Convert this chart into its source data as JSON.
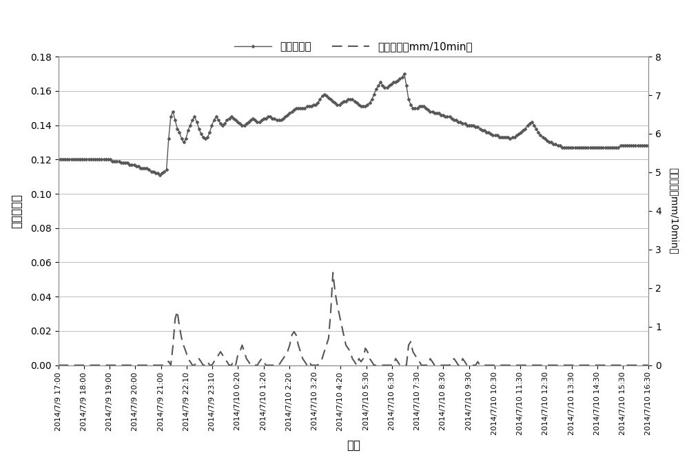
{
  "xlabel": "时间",
  "ylabel_left": "体积含水量",
  "ylabel_right": "降雨强度（mm/10min）",
  "legend_vwc": "体积含水量",
  "legend_rain": "降雨强度（mm/10min）",
  "ylim_left": [
    0,
    0.18
  ],
  "ylim_right": [
    0,
    8
  ],
  "yticks_left": [
    0,
    0.02,
    0.04,
    0.06,
    0.08,
    0.1,
    0.12,
    0.14,
    0.16,
    0.18
  ],
  "yticks_right": [
    0,
    1,
    2,
    3,
    4,
    5,
    6,
    7,
    8
  ],
  "line_color": "#555555",
  "dash_color": "#555555",
  "background": "#ffffff",
  "grid_color": "#bbbbbb",
  "xtick_labels": [
    "2014/7/9 17:00",
    "2014/7/9 18:00",
    "2014/7/9 19:00",
    "2014/7/9 20:00",
    "2014/7/9 21:00",
    "2014/7/9 22:10",
    "2014/7/9 23:10",
    "2014/7/10 0:20",
    "2014/7/10 1:20",
    "2014/7/10 2:20",
    "2014/7/10 3:20",
    "2014/7/10 4:20",
    "2014/7/10 5:30",
    "2014/7/10 6:30",
    "2014/7/10 7:30",
    "2014/7/10 8:30",
    "2014/7/10 9:30",
    "2014/7/10 10:30",
    "2014/7/10 11:30",
    "2014/7/10 12:30",
    "2014/7/10 13:30",
    "2014/7/10 14:30",
    "2014/7/10 15:30",
    "2014/7/10 16:30"
  ],
  "vwc_y": [
    0.12,
    0.12,
    0.12,
    0.12,
    0.12,
    0.12,
    0.12,
    0.12,
    0.12,
    0.12,
    0.12,
    0.12,
    0.12,
    0.12,
    0.12,
    0.12,
    0.12,
    0.12,
    0.12,
    0.12,
    0.12,
    0.12,
    0.12,
    0.12,
    0.12,
    0.119,
    0.119,
    0.119,
    0.119,
    0.118,
    0.118,
    0.118,
    0.118,
    0.117,
    0.117,
    0.117,
    0.116,
    0.116,
    0.115,
    0.115,
    0.115,
    0.115,
    0.114,
    0.113,
    0.113,
    0.112,
    0.112,
    0.111,
    0.112,
    0.113,
    0.114,
    0.132,
    0.145,
    0.148,
    0.143,
    0.138,
    0.136,
    0.132,
    0.13,
    0.132,
    0.137,
    0.14,
    0.143,
    0.145,
    0.142,
    0.138,
    0.135,
    0.133,
    0.132,
    0.133,
    0.136,
    0.14,
    0.143,
    0.145,
    0.143,
    0.141,
    0.14,
    0.141,
    0.143,
    0.144,
    0.145,
    0.144,
    0.143,
    0.142,
    0.141,
    0.14,
    0.14,
    0.141,
    0.142,
    0.143,
    0.144,
    0.143,
    0.142,
    0.142,
    0.143,
    0.144,
    0.144,
    0.145,
    0.145,
    0.144,
    0.144,
    0.143,
    0.143,
    0.143,
    0.144,
    0.145,
    0.146,
    0.147,
    0.148,
    0.149,
    0.15,
    0.15,
    0.15,
    0.15,
    0.15,
    0.151,
    0.151,
    0.151,
    0.152,
    0.152,
    0.153,
    0.155,
    0.157,
    0.158,
    0.157,
    0.156,
    0.155,
    0.154,
    0.153,
    0.152,
    0.152,
    0.153,
    0.154,
    0.154,
    0.155,
    0.155,
    0.155,
    0.154,
    0.153,
    0.152,
    0.151,
    0.151,
    0.151,
    0.152,
    0.153,
    0.155,
    0.158,
    0.161,
    0.163,
    0.165,
    0.163,
    0.162,
    0.162,
    0.163,
    0.164,
    0.165,
    0.165,
    0.166,
    0.167,
    0.168,
    0.17,
    0.163,
    0.155,
    0.152,
    0.15,
    0.15,
    0.15,
    0.151,
    0.151,
    0.151,
    0.15,
    0.149,
    0.148,
    0.148,
    0.147,
    0.147,
    0.147,
    0.146,
    0.146,
    0.145,
    0.145,
    0.145,
    0.144,
    0.143,
    0.143,
    0.142,
    0.142,
    0.141,
    0.141,
    0.14,
    0.14,
    0.14,
    0.14,
    0.139,
    0.139,
    0.138,
    0.137,
    0.137,
    0.136,
    0.136,
    0.135,
    0.134,
    0.134,
    0.134,
    0.133,
    0.133,
    0.133,
    0.133,
    0.133,
    0.132,
    0.133,
    0.133,
    0.134,
    0.135,
    0.136,
    0.137,
    0.138,
    0.14,
    0.141,
    0.142,
    0.14,
    0.138,
    0.136,
    0.134,
    0.133,
    0.132,
    0.131,
    0.13,
    0.13,
    0.129,
    0.129,
    0.128,
    0.128,
    0.127,
    0.127,
    0.127,
    0.127,
    0.127,
    0.127,
    0.127,
    0.127,
    0.127,
    0.127,
    0.127,
    0.127,
    0.127,
    0.127,
    0.127,
    0.127,
    0.127,
    0.127,
    0.127,
    0.127,
    0.127,
    0.127,
    0.127,
    0.127,
    0.127,
    0.127,
    0.127,
    0.128,
    0.128,
    0.128,
    0.128,
    0.128,
    0.128,
    0.128,
    0.128,
    0.128,
    0.128,
    0.128,
    0.128,
    0.128,
    0.128
  ],
  "rain_y": [
    0.0,
    0.0,
    0.0,
    0.0,
    0.0,
    0.0,
    0.0,
    0.0,
    0.0,
    0.0,
    0.0,
    0.0,
    0.0,
    0.0,
    0.0,
    0.0,
    0.0,
    0.0,
    0.0,
    0.0,
    0.0,
    0.0,
    0.0,
    0.0,
    0.0,
    0.0,
    0.0,
    0.0,
    0.0,
    0.0,
    0.0,
    0.0,
    0.0,
    0.0,
    0.0,
    0.0,
    0.0,
    0.0,
    0.0,
    0.0,
    0.0,
    0.0,
    0.0,
    0.0,
    0.0,
    0.0,
    0.0,
    0.0,
    0.0,
    0.0,
    0.05,
    0.1,
    0.0,
    0.5,
    1.2,
    1.4,
    1.0,
    0.7,
    0.5,
    0.35,
    0.17,
    0.09,
    0.0,
    0.0,
    0.09,
    0.17,
    0.09,
    0.0,
    0.0,
    0.09,
    0.0,
    0.0,
    0.09,
    0.17,
    0.26,
    0.35,
    0.26,
    0.17,
    0.09,
    0.0,
    0.0,
    0.09,
    0.0,
    0.26,
    0.35,
    0.52,
    0.35,
    0.17,
    0.09,
    0.0,
    0.0,
    0.0,
    0.0,
    0.09,
    0.17,
    0.09,
    0.0,
    0.0,
    0.0,
    0.0,
    0.0,
    0.0,
    0.0,
    0.09,
    0.17,
    0.26,
    0.35,
    0.52,
    0.78,
    0.87,
    0.78,
    0.52,
    0.35,
    0.17,
    0.09,
    0.0,
    0.09,
    0.0,
    0.0,
    0.0,
    0.0,
    0.09,
    0.17,
    0.35,
    0.52,
    0.7,
    1.4,
    2.4,
    1.9,
    1.56,
    1.3,
    1.04,
    0.78,
    0.52,
    0.44,
    0.35,
    0.17,
    0.09,
    0.0,
    0.17,
    0.09,
    0.17,
    0.44,
    0.35,
    0.17,
    0.09,
    0.0,
    0.0,
    0.0,
    0.0,
    0.0,
    0.0,
    0.0,
    0.0,
    0.0,
    0.0,
    0.17,
    0.09,
    0.0,
    0.0,
    0.0,
    0.0,
    0.52,
    0.61,
    0.35,
    0.26,
    0.17,
    0.09,
    0.0,
    0.0,
    0.0,
    0.0,
    0.17,
    0.09,
    0.0,
    0.0,
    0.0,
    0.0,
    0.0,
    0.0,
    0.0,
    0.0,
    0.09,
    0.17,
    0.09,
    0.0,
    0.0,
    0.17,
    0.09,
    0.0,
    0.0,
    0.0,
    0.0,
    0.0,
    0.09,
    0.0,
    0.0,
    0.0,
    0.0,
    0.0,
    0.0,
    0.0,
    0.0,
    0.0,
    0.0,
    0.0,
    0.0,
    0.0,
    0.0,
    0.0,
    0.0,
    0.0,
    0.0,
    0.0,
    0.0,
    0.0,
    0.0,
    0.0,
    0.0,
    0.0,
    0.0,
    0.0,
    0.0,
    0.0,
    0.0,
    0.0,
    0.0,
    0.0,
    0.0,
    0.0,
    0.0,
    0.0,
    0.0,
    0.0,
    0.0,
    0.0,
    0.0,
    0.0,
    0.0,
    0.0,
    0.0,
    0.0,
    0.0,
    0.0,
    0.0,
    0.0,
    0.0,
    0.0,
    0.0,
    0.0,
    0.0,
    0.0,
    0.0,
    0.0,
    0.0,
    0.0,
    0.0,
    0.0,
    0.0,
    0.0,
    0.0,
    0.0,
    0.0,
    0.0,
    0.0,
    0.0,
    0.0,
    0.0,
    0.0,
    0.0,
    0.0,
    0.0,
    0.0,
    0.0
  ]
}
